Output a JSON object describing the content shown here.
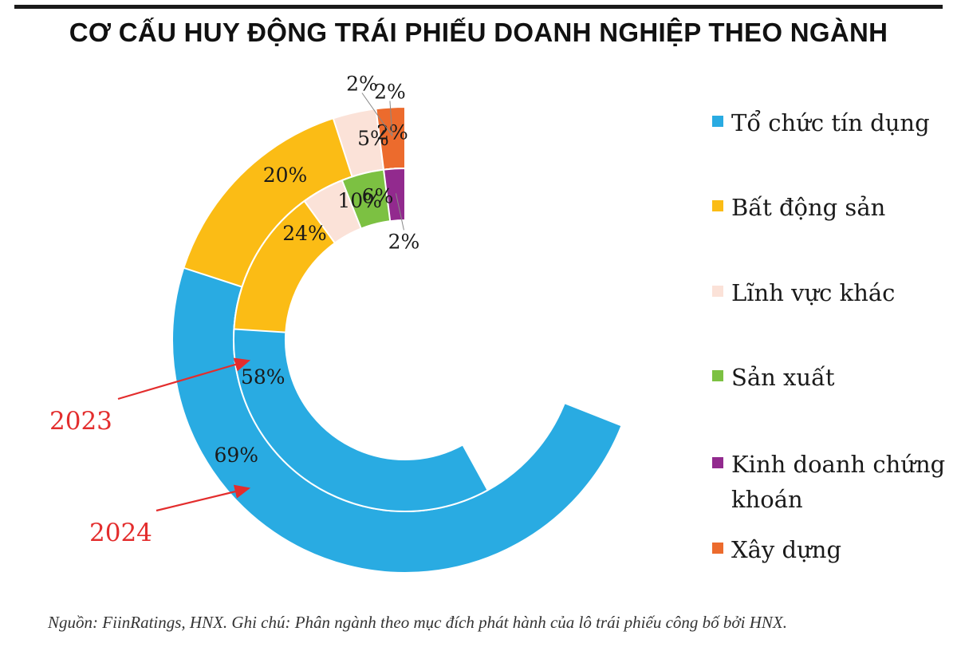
{
  "title": "CƠ CẤU HUY ĐỘNG TRÁI PHIẾU DOANH NGHIỆP THEO NGÀNH",
  "source_note": "Nguồn: FiinRatings, HNX. Ghi chú: Phân ngành theo mục đích phát hành của lô trái phiếu công bố bởi HNX.",
  "chart_data": {
    "type": "donut",
    "categories": [
      "Tổ chức tín dụng",
      "Bất động sản",
      "Lĩnh vực khác",
      "Sản xuất",
      "Kinh doanh chứng khoán",
      "Xây dựng"
    ],
    "legend_lines": [
      [
        "Tổ chức tín dụng"
      ],
      [
        "Bất động sản"
      ],
      [
        "Lĩnh vực khác"
      ],
      [
        "Sản xuất"
      ],
      [
        "Kinh doanh chứng",
        "khoán"
      ],
      [
        "Xây dựng"
      ]
    ],
    "colors": [
      "#29abe2",
      "#fbbc15",
      "#fbe2d8",
      "#7cc142",
      "#922a8e",
      "#ec6b2d"
    ],
    "series": [
      {
        "name": "2024",
        "ring": "outer",
        "values": [
          69,
          20,
          5,
          2,
          2,
          2
        ],
        "labels": [
          "69%",
          "20%",
          "5%",
          "2%",
          "2%",
          "2%"
        ]
      },
      {
        "name": "2023",
        "ring": "inner",
        "values": [
          58,
          24,
          10,
          6,
          2,
          0
        ],
        "labels": [
          "58%",
          "24%",
          "10%",
          "6%",
          "2%",
          ""
        ]
      }
    ],
    "unit": "%",
    "legend_position": "right"
  }
}
